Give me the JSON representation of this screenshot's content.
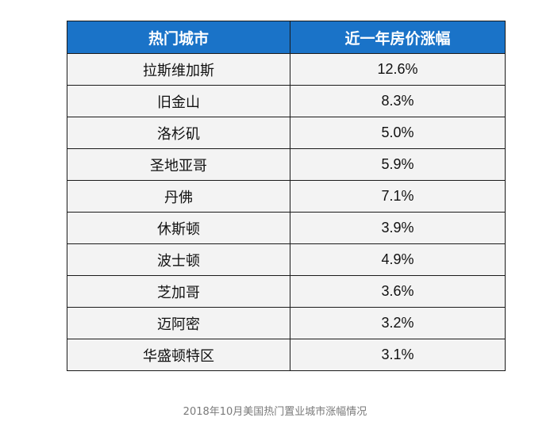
{
  "table": {
    "headers": [
      "热门城市",
      "近一年房价涨幅"
    ],
    "rows": [
      {
        "city": "拉斯维加斯",
        "change": "12.6%"
      },
      {
        "city": "旧金山",
        "change": "8.3%"
      },
      {
        "city": "洛杉矶",
        "change": "5.0%"
      },
      {
        "city": "圣地亚哥",
        "change": "5.9%"
      },
      {
        "city": "丹佛",
        "change": "7.1%"
      },
      {
        "city": "休斯顿",
        "change": "3.9%"
      },
      {
        "city": "波士顿",
        "change": "4.9%"
      },
      {
        "city": "芝加哥",
        "change": "3.6%"
      },
      {
        "city": "迈阿密",
        "change": "3.2%"
      },
      {
        "city": "华盛顿特区",
        "change": "3.1%"
      }
    ]
  },
  "caption": "2018年10月美国热门置业城市涨幅情况",
  "colors": {
    "header_bg": "#1a73c8",
    "header_text": "#ffffff",
    "row_bg": "#f3f3f3",
    "border": "#1a1a1a",
    "caption_text": "#7a7a7a"
  }
}
